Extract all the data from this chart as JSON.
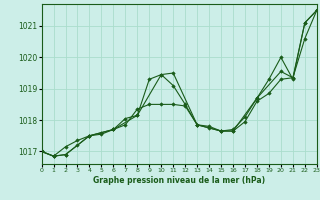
{
  "title": "Graphe pression niveau de la mer (hPa)",
  "background_color": "#cceee8",
  "grid_color": "#aaddcc",
  "line_color": "#1a5c1a",
  "marker_color": "#1a5c1a",
  "xlim": [
    0,
    23
  ],
  "ylim": [
    1016.6,
    1021.7
  ],
  "yticks": [
    1017,
    1018,
    1019,
    1020,
    1021
  ],
  "xticks": [
    0,
    1,
    2,
    3,
    4,
    5,
    6,
    7,
    8,
    9,
    10,
    11,
    12,
    13,
    14,
    15,
    16,
    17,
    18,
    19,
    20,
    21,
    22,
    23
  ],
  "line1_x": [
    0,
    1,
    2,
    3,
    4,
    5,
    6,
    7,
    8,
    9,
    10,
    11,
    12,
    13,
    14,
    15,
    16,
    17,
    18,
    19,
    20,
    21,
    22,
    23
  ],
  "line1_y": [
    1017.0,
    1016.85,
    1016.9,
    1017.2,
    1017.5,
    1017.55,
    1017.7,
    1018.05,
    1018.15,
    1019.3,
    1019.45,
    1019.1,
    1018.5,
    1017.85,
    1017.8,
    1017.65,
    1017.7,
    1018.1,
    1018.7,
    1019.3,
    1020.0,
    1019.3,
    1021.1,
    1021.5
  ],
  "line2_x": [
    0,
    1,
    2,
    3,
    4,
    5,
    6,
    7,
    8,
    9,
    10,
    11,
    12,
    13,
    14,
    15,
    16,
    17,
    18,
    19,
    20,
    21,
    22,
    23
  ],
  "line2_y": [
    1017.0,
    1016.85,
    1017.15,
    1017.35,
    1017.5,
    1017.6,
    1017.7,
    1017.85,
    1018.35,
    1018.5,
    1018.5,
    1018.5,
    1018.45,
    1017.85,
    1017.75,
    1017.65,
    1017.65,
    1017.95,
    1018.6,
    1018.85,
    1019.3,
    1019.35,
    1020.6,
    1021.5
  ],
  "line3_x": [
    0,
    1,
    2,
    4,
    6,
    8,
    10,
    11,
    13,
    15,
    16,
    18,
    20,
    21,
    22,
    23
  ],
  "line3_y": [
    1017.0,
    1016.85,
    1016.9,
    1017.5,
    1017.7,
    1018.15,
    1019.45,
    1019.5,
    1017.85,
    1017.65,
    1017.65,
    1018.7,
    1019.55,
    1019.35,
    1021.1,
    1021.5
  ]
}
